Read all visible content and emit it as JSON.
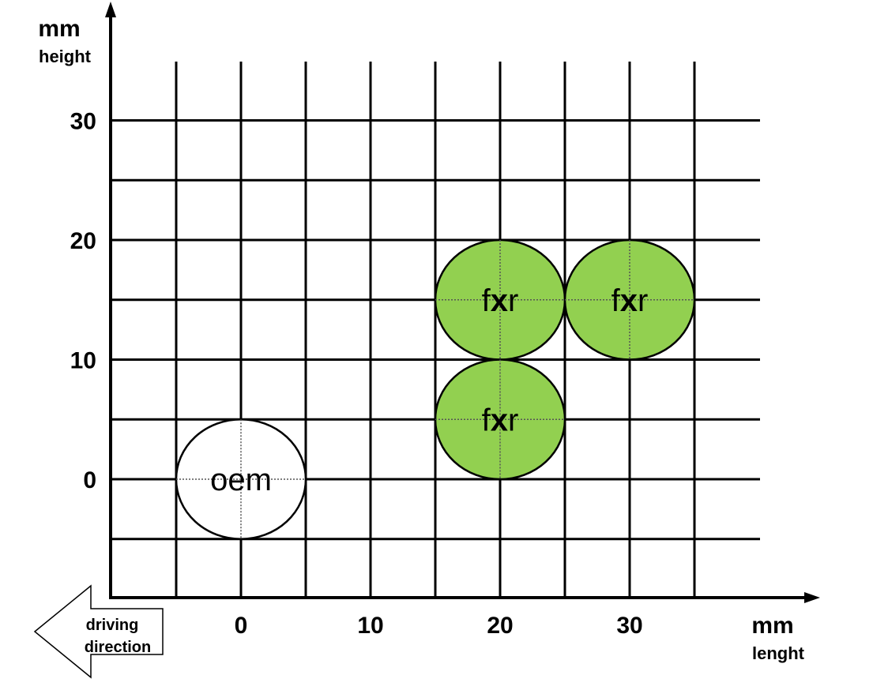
{
  "chart_data": {
    "type": "scatter",
    "xlabel": [
      "mm",
      "lenght"
    ],
    "ylabel": [
      "mm",
      "height"
    ],
    "xlim": [
      -10,
      40
    ],
    "ylim": [
      -10,
      40
    ],
    "x_ticks": [
      0,
      10,
      20,
      30
    ],
    "y_ticks": [
      0,
      10,
      20,
      30
    ],
    "grid_step": 5,
    "grid": true,
    "marker_radius_mm": 5,
    "points": [
      {
        "label": "oem",
        "x": 0,
        "y": 0,
        "color": "#ffffff"
      },
      {
        "label": "fxr",
        "x": 20,
        "y": 15,
        "color": "#92d050"
      },
      {
        "label": "fxr",
        "x": 20,
        "y": 5,
        "color": "#92d050"
      },
      {
        "label": "fxr",
        "x": 30,
        "y": 15,
        "color": "#92d050"
      }
    ],
    "annotation": [
      "driving",
      "direction"
    ]
  }
}
